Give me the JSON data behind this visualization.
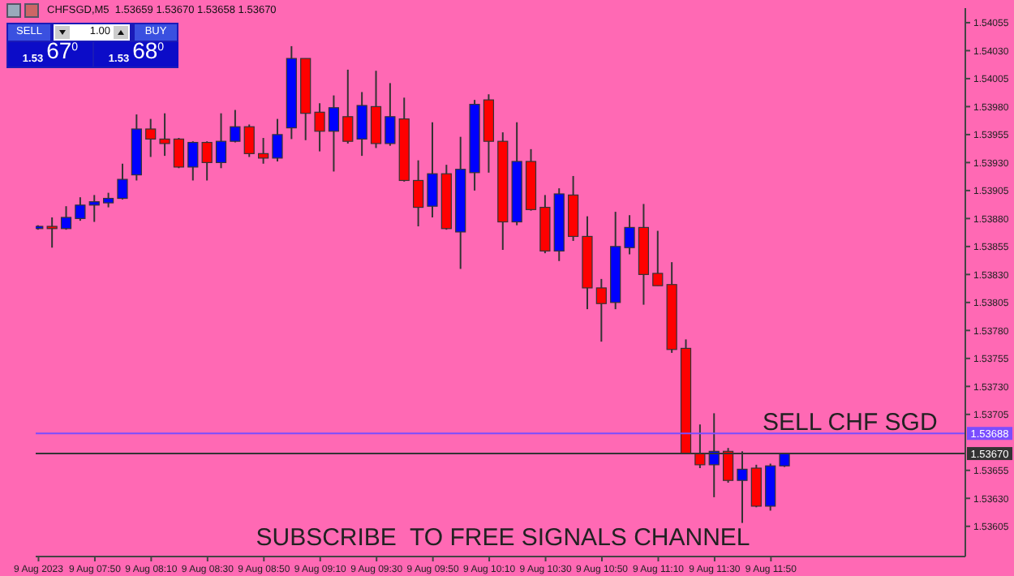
{
  "chart_data": {
    "type": "candlestick",
    "annotations": [
      "CHFSGD,M5  1.53659 1.53670 1.53658 1.53670",
      "SELL",
      "1.00",
      "BUY",
      "1.53",
      "67$^{0}$",
      "1.53",
      "68$^{0}$",
      "SELL CHF SGD",
      "SUBSCRIBE  TO FREE SIGNALS CHANNEL"
    ],
    "x": [
      "2023-08-09T07:30",
      "2023-08-09T07:35",
      "2023-08-09T07:40",
      "2023-08-09T07:45",
      "2023-08-09T07:50",
      "2023-08-09T07:55",
      "2023-08-09T08:00",
      "2023-08-09T08:05",
      "2023-08-09T08:10",
      "2023-08-09T08:15",
      "2023-08-09T08:20",
      "2023-08-09T08:25",
      "2023-08-09T08:30",
      "2023-08-09T08:35",
      "2023-08-09T08:40",
      "2023-08-09T08:45",
      "2023-08-09T08:50",
      "2023-08-09T08:55",
      "2023-08-09T09:00",
      "2023-08-09T09:05",
      "2023-08-09T09:10",
      "2023-08-09T09:15",
      "2023-08-09T09:20",
      "2023-08-09T09:25",
      "2023-08-09T09:30",
      "2023-08-09T09:35",
      "2023-08-09T09:40",
      "2023-08-09T09:45",
      "2023-08-09T09:50",
      "2023-08-09T09:55",
      "2023-08-09T10:00",
      "2023-08-09T10:05",
      "2023-08-09T10:10",
      "2023-08-09T10:15",
      "2023-08-09T10:20",
      "2023-08-09T10:25",
      "2023-08-09T10:30",
      "2023-08-09T10:35",
      "2023-08-09T10:40",
      "2023-08-09T10:45",
      "2023-08-09T10:50",
      "2023-08-09T10:55",
      "2023-08-09T11:00",
      "2023-08-09T11:05",
      "2023-08-09T11:10",
      "2023-08-09T11:15",
      "2023-08-09T11:20",
      "2023-08-09T11:25",
      "2023-08-09T11:30",
      "2023-08-09T11:35",
      "2023-08-09T11:40",
      "2023-08-09T11:45",
      "2023-08-09T11:50",
      "2023-08-09T11:55"
    ],
    "ohlc": [
      [
        1.53871,
        1.53874,
        1.5387,
        1.53873
      ],
      [
        1.53873,
        1.53881,
        1.53854,
        1.53871
      ],
      [
        1.53871,
        1.53891,
        1.5387,
        1.53881
      ],
      [
        1.5388,
        1.53899,
        1.53878,
        1.53892
      ],
      [
        1.53892,
        1.53901,
        1.53877,
        1.53895
      ],
      [
        1.53894,
        1.53903,
        1.5389,
        1.53898
      ],
      [
        1.53898,
        1.53929,
        1.53897,
        1.53915
      ],
      [
        1.53919,
        1.53973,
        1.53914,
        1.5396
      ],
      [
        1.5396,
        1.53969,
        1.53935,
        1.53951
      ],
      [
        1.53951,
        1.53974,
        1.53936,
        1.53947
      ],
      [
        1.53951,
        1.53952,
        1.53925,
        1.53926
      ],
      [
        1.53926,
        1.53949,
        1.53914,
        1.53948
      ],
      [
        1.53948,
        1.53949,
        1.53914,
        1.5393
      ],
      [
        1.5393,
        1.53974,
        1.53925,
        1.53949
      ],
      [
        1.53949,
        1.53977,
        1.53948,
        1.53962
      ],
      [
        1.53962,
        1.53964,
        1.53935,
        1.53938
      ],
      [
        1.53938,
        1.53952,
        1.53929,
        1.53934
      ],
      [
        1.53934,
        1.53969,
        1.53931,
        1.53955
      ],
      [
        1.53961,
        1.54034,
        1.53951,
        1.54023
      ],
      [
        1.54023,
        1.54023,
        1.5395,
        1.53974
      ],
      [
        1.53975,
        1.53983,
        1.5394,
        1.53958
      ],
      [
        1.53958,
        1.5399,
        1.53922,
        1.53979
      ],
      [
        1.53971,
        1.54013,
        1.53947,
        1.53949
      ],
      [
        1.53951,
        1.53993,
        1.53936,
        1.53981
      ],
      [
        1.5398,
        1.54012,
        1.53943,
        1.53947
      ],
      [
        1.53947,
        1.54001,
        1.53945,
        1.53971
      ],
      [
        1.53969,
        1.53988,
        1.53913,
        1.53914
      ],
      [
        1.53914,
        1.53932,
        1.53873,
        1.5389
      ],
      [
        1.53891,
        1.53966,
        1.53881,
        1.5392
      ],
      [
        1.5392,
        1.53928,
        1.5387,
        1.53871
      ],
      [
        1.53868,
        1.53953,
        1.53835,
        1.53924
      ],
      [
        1.53921,
        1.53986,
        1.53905,
        1.53982
      ],
      [
        1.53986,
        1.53991,
        1.53921,
        1.53949
      ],
      [
        1.53949,
        1.53957,
        1.53852,
        1.53877
      ],
      [
        1.53877,
        1.53966,
        1.53874,
        1.53931
      ],
      [
        1.53931,
        1.53942,
        1.53887,
        1.53888
      ],
      [
        1.5389,
        1.53901,
        1.53849,
        1.53851
      ],
      [
        1.53851,
        1.53907,
        1.53842,
        1.53902
      ],
      [
        1.53901,
        1.53918,
        1.5386,
        1.53864
      ],
      [
        1.53864,
        1.53882,
        1.53799,
        1.53818
      ],
      [
        1.53818,
        1.53826,
        1.5377,
        1.53804
      ],
      [
        1.53805,
        1.53886,
        1.53799,
        1.53855
      ],
      [
        1.53854,
        1.53883,
        1.53848,
        1.53872
      ],
      [
        1.53872,
        1.53893,
        1.53803,
        1.5383
      ],
      [
        1.53831,
        1.53869,
        1.5382,
        1.5382
      ],
      [
        1.53821,
        1.53841,
        1.5376,
        1.53763
      ],
      [
        1.53764,
        1.53772,
        1.5367,
        1.5367
      ],
      [
        1.5367,
        1.53696,
        1.53657,
        1.5366
      ],
      [
        1.5366,
        1.53706,
        1.53631,
        1.53672
      ],
      [
        1.53672,
        1.53675,
        1.53644,
        1.53646
      ],
      [
        1.53646,
        1.53672,
        1.53608,
        1.53656
      ],
      [
        1.53657,
        1.5366,
        1.53622,
        1.53623
      ],
      [
        1.53623,
        1.53661,
        1.53619,
        1.53659
      ],
      [
        1.53659,
        1.5367,
        1.53658,
        1.5367
      ]
    ],
    "colors": [
      "#0000ff",
      "#ff0000",
      "#0000ff",
      "#0000ff",
      "#0000ff",
      "#0000ff",
      "#0000ff",
      "#0000ff",
      "#ff0000",
      "#ff0000",
      "#ff0000",
      "#0000ff",
      "#ff0000",
      "#0000ff",
      "#0000ff",
      "#ff0000",
      "#ff0000",
      "#0000ff",
      "#0000ff",
      "#ff0000",
      "#ff0000",
      "#0000ff",
      "#ff0000",
      "#0000ff",
      "#ff0000",
      "#0000ff",
      "#ff0000",
      "#ff0000",
      "#0000ff",
      "#ff0000",
      "#0000ff",
      "#0000ff",
      "#ff0000",
      "#ff0000",
      "#0000ff",
      "#ff0000",
      "#ff0000",
      "#0000ff",
      "#ff0000",
      "#ff0000",
      "#ff0000",
      "#0000ff",
      "#0000ff",
      "#ff0000",
      "#ff0000",
      "#ff0000",
      "#ff0000",
      "#ff0000",
      "#0000ff",
      "#ff0000",
      "#0000ff",
      "#ff0000",
      "#0000ff",
      "#0000ff"
    ],
    "xlim": [
      "2023-08-09T07:29",
      "2023-08-09T12:59"
    ],
    "xticks": [
      {
        "value": "2023-08-09T07:30",
        "label": "9 Aug 2023"
      },
      {
        "value": "2023-08-09T07:50",
        "label": "9 Aug 07:50"
      },
      {
        "value": "2023-08-09T08:10",
        "label": "9 Aug 08:10"
      },
      {
        "value": "2023-08-09T08:30",
        "label": "9 Aug 08:30"
      },
      {
        "value": "2023-08-09T08:50",
        "label": "9 Aug 08:50"
      },
      {
        "value": "2023-08-09T09:10",
        "label": "9 Aug 09:10"
      },
      {
        "value": "2023-08-09T09:30",
        "label": "9 Aug 09:30"
      },
      {
        "value": "2023-08-09T09:50",
        "label": "9 Aug 09:50"
      },
      {
        "value": "2023-08-09T10:10",
        "label": "9 Aug 10:10"
      },
      {
        "value": "2023-08-09T10:30",
        "label": "9 Aug 10:30"
      },
      {
        "value": "2023-08-09T10:50",
        "label": "9 Aug 10:50"
      },
      {
        "value": "2023-08-09T11:10",
        "label": "9 Aug 11:10"
      },
      {
        "value": "2023-08-09T11:30",
        "label": "9 Aug 11:30"
      },
      {
        "value": "2023-08-09T11:50",
        "label": "9 Aug 11:50"
      }
    ],
    "ylim": [
      1.53578,
      1.54068
    ],
    "yticks": [
      1.54055,
      {
        "value": 1.5403,
        "label": "1.54030"
      },
      1.54005,
      {
        "value": 1.5398,
        "label": "1.53980"
      },
      1.53955,
      {
        "value": 1.5393,
        "label": "1.53930"
      },
      1.53905,
      {
        "value": 1.5388,
        "label": "1.53880"
      },
      1.53855,
      {
        "value": 1.5383,
        "label": "1.53830"
      },
      1.53805,
      {
        "value": 1.5378,
        "label": "1.53780"
      },
      1.53755,
      {
        "value": 1.5373,
        "label": "1.53730"
      },
      1.53705,
      1.53655,
      {
        "value": 1.5363,
        "label": "1.53630"
      },
      1.53605
    ],
    "ref_lines": [
      {
        "axis": "y",
        "value": 1.53688,
        "label": "1.53688",
        "color": "#7a4dff"
      },
      {
        "axis": "y",
        "value": 1.5367,
        "label": "1.53670",
        "color": "#333333"
      }
    ]
  }
}
